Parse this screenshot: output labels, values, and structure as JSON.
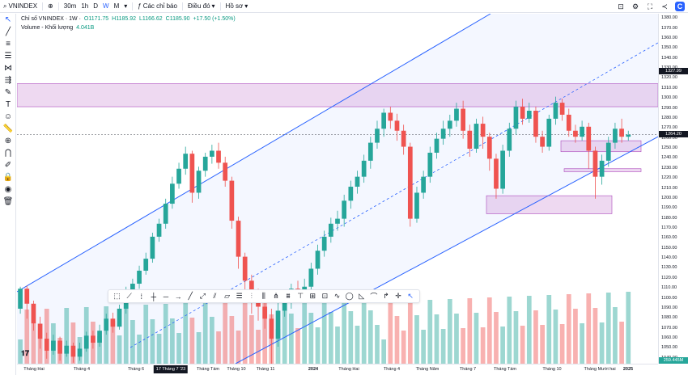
{
  "toolbar": {
    "symbol": "VNINDEX",
    "intervals": [
      "30m",
      "1h",
      "D",
      "W",
      "M"
    ],
    "active_interval": "W",
    "indicators_label": "Các chỉ báo",
    "alert_label": "Điều đó",
    "profile_label": "Hồ sơ",
    "dropdown_glyph": "▾"
  },
  "legend": {
    "title": "Chỉ số VNINDEX · 1W ·",
    "open": "O1171.75",
    "high": "H1185.92",
    "low": "L1166.62",
    "close": "C1185.90",
    "change": "+17.50 (+1.50%)",
    "volume_label": "Volume - Khối lượng",
    "volume_value": "4.041B"
  },
  "price_axis": {
    "labels": [
      "1380.00",
      "1370.00",
      "1360.00",
      "1350.00",
      "1340.00",
      "1330.00",
      "1320.00",
      "1310.00",
      "1300.00",
      "1290.00",
      "1280.00",
      "1270.00",
      "1260.00",
      "1250.00",
      "1240.00",
      "1230.00",
      "1220.00",
      "1210.00",
      "1200.00",
      "1190.00",
      "1180.00",
      "1170.00",
      "1160.00",
      "1150.00",
      "1140.00",
      "1130.00",
      "1120.00",
      "1110.00",
      "1100.00",
      "1090.00",
      "1080.00",
      "1070.00",
      "1060.00",
      "1050.00",
      "1040.00"
    ],
    "badge_1": "1327.99",
    "badge_2": "1264.20",
    "badge_3": "259.445M"
  },
  "time_axis": {
    "labels": [
      "Tháng Hai",
      "Tháng 4",
      "Tháng 6",
      "Tháng Tám",
      "Tháng 10",
      "Tháng 11",
      "2024",
      "Tháng Hai",
      "Tháng 4",
      "Tháng Năm",
      "Tháng 7",
      "Tháng Tám",
      "Tháng 10",
      "Tháng Mười hai",
      "2025"
    ],
    "cursor_label": "17 Tháng 7 '23"
  },
  "colors": {
    "up": "#26a69a",
    "down": "#ef5350",
    "channel": "#2962ff",
    "zone": "#ce93d8"
  },
  "chart_data": {
    "type": "candlestick",
    "symbol": "VNINDEX",
    "interval": "1W",
    "candles": [
      [
        1090,
        1110,
        1085,
        1112
      ],
      [
        1110,
        1095,
        1080,
        1113
      ],
      [
        1095,
        1075,
        1068,
        1098
      ],
      [
        1075,
        1060,
        1050,
        1082
      ],
      [
        1060,
        1048,
        1040,
        1066
      ],
      [
        1048,
        1058,
        1044,
        1064
      ],
      [
        1058,
        1045,
        1038,
        1062
      ],
      [
        1045,
        1053,
        1042,
        1058
      ],
      [
        1053,
        1042,
        1036,
        1056
      ],
      [
        1042,
        1050,
        1038,
        1056
      ],
      [
        1050,
        1063,
        1047,
        1067
      ],
      [
        1063,
        1056,
        1050,
        1068
      ],
      [
        1056,
        1068,
        1052,
        1074
      ],
      [
        1068,
        1080,
        1064,
        1085
      ],
      [
        1080,
        1072,
        1066,
        1086
      ],
      [
        1072,
        1090,
        1069,
        1094
      ],
      [
        1090,
        1108,
        1085,
        1112
      ],
      [
        1108,
        1115,
        1100,
        1120
      ],
      [
        1115,
        1128,
        1110,
        1133
      ],
      [
        1128,
        1140,
        1124,
        1146
      ],
      [
        1140,
        1162,
        1136,
        1166
      ],
      [
        1162,
        1175,
        1157,
        1180
      ],
      [
        1175,
        1195,
        1170,
        1200
      ],
      [
        1195,
        1215,
        1190,
        1222
      ],
      [
        1215,
        1230,
        1210,
        1236
      ],
      [
        1230,
        1245,
        1224,
        1252
      ],
      [
        1245,
        1206,
        1196,
        1248
      ],
      [
        1206,
        1228,
        1200,
        1232
      ],
      [
        1228,
        1242,
        1222,
        1246
      ],
      [
        1242,
        1248,
        1235,
        1254
      ],
      [
        1248,
        1236,
        1230,
        1256
      ],
      [
        1236,
        1218,
        1212,
        1242
      ],
      [
        1218,
        1178,
        1170,
        1222
      ],
      [
        1178,
        1142,
        1130,
        1182
      ],
      [
        1142,
        1118,
        1105,
        1146
      ],
      [
        1118,
        1100,
        1085,
        1124
      ],
      [
        1100,
        1092,
        1078,
        1110
      ],
      [
        1092,
        1080,
        1070,
        1102
      ],
      [
        1080,
        1060,
        1027,
        1090
      ],
      [
        1060,
        1088,
        1052,
        1096
      ],
      [
        1088,
        1098,
        1082,
        1105
      ],
      [
        1098,
        1110,
        1090,
        1115
      ],
      [
        1110,
        1104,
        1097,
        1118
      ],
      [
        1104,
        1112,
        1098,
        1120
      ],
      [
        1112,
        1130,
        1108,
        1136
      ],
      [
        1130,
        1148,
        1124,
        1154
      ],
      [
        1148,
        1162,
        1142,
        1168
      ],
      [
        1162,
        1175,
        1156,
        1181
      ],
      [
        1175,
        1180,
        1168,
        1188
      ],
      [
        1180,
        1198,
        1172,
        1204
      ],
      [
        1198,
        1212,
        1190,
        1218
      ],
      [
        1212,
        1222,
        1205,
        1228
      ],
      [
        1222,
        1238,
        1216,
        1244
      ],
      [
        1238,
        1256,
        1230,
        1262
      ],
      [
        1256,
        1270,
        1250,
        1278
      ],
      [
        1270,
        1286,
        1262,
        1290
      ],
      [
        1286,
        1278,
        1270,
        1292
      ],
      [
        1278,
        1268,
        1258,
        1285
      ],
      [
        1268,
        1252,
        1244,
        1274
      ],
      [
        1252,
        1180,
        1172,
        1256
      ],
      [
        1180,
        1206,
        1176,
        1212
      ],
      [
        1206,
        1222,
        1200,
        1228
      ],
      [
        1222,
        1246,
        1216,
        1252
      ],
      [
        1246,
        1260,
        1240,
        1266
      ],
      [
        1260,
        1270,
        1254,
        1278
      ],
      [
        1270,
        1278,
        1262,
        1284
      ],
      [
        1278,
        1290,
        1272,
        1296
      ],
      [
        1290,
        1268,
        1260,
        1298
      ],
      [
        1268,
        1250,
        1242,
        1274
      ],
      [
        1250,
        1275,
        1246,
        1280
      ],
      [
        1275,
        1262,
        1250,
        1282
      ],
      [
        1262,
        1240,
        1228,
        1266
      ],
      [
        1240,
        1210,
        1200,
        1245
      ],
      [
        1210,
        1248,
        1205,
        1254
      ],
      [
        1248,
        1270,
        1242,
        1276
      ],
      [
        1270,
        1292,
        1264,
        1298
      ],
      [
        1292,
        1280,
        1274,
        1300
      ],
      [
        1280,
        1288,
        1276,
        1296
      ],
      [
        1288,
        1262,
        1256,
        1292
      ],
      [
        1262,
        1252,
        1246,
        1268
      ],
      [
        1252,
        1280,
        1248,
        1284
      ],
      [
        1280,
        1296,
        1274,
        1302
      ],
      [
        1296,
        1284,
        1278,
        1300
      ],
      [
        1284,
        1268,
        1262,
        1290
      ],
      [
        1268,
        1262,
        1256,
        1274
      ],
      [
        1262,
        1272,
        1258,
        1278
      ],
      [
        1272,
        1248,
        1230,
        1276
      ],
      [
        1248,
        1222,
        1200,
        1252
      ],
      [
        1222,
        1238,
        1214,
        1244
      ],
      [
        1238,
        1256,
        1232,
        1262
      ],
      [
        1256,
        1270,
        1250,
        1276
      ],
      [
        1270,
        1262,
        1256,
        1280
      ],
      [
        1262,
        1264,
        1258,
        1268
      ]
    ],
    "price_range": [
      1035,
      1385
    ],
    "volume_unit": "M",
    "volume_last": 259.445,
    "zones": [
      {
        "name": "resistance-zone",
        "top": 1315,
        "bottom": 1292
      },
      {
        "name": "small-zone-1",
        "top": 1258,
        "bottom": 1247
      },
      {
        "name": "small-zone-2",
        "top": 1230,
        "bottom": 1227
      },
      {
        "name": "support-zone",
        "top": 1203,
        "bottom": 1185
      }
    ]
  }
}
